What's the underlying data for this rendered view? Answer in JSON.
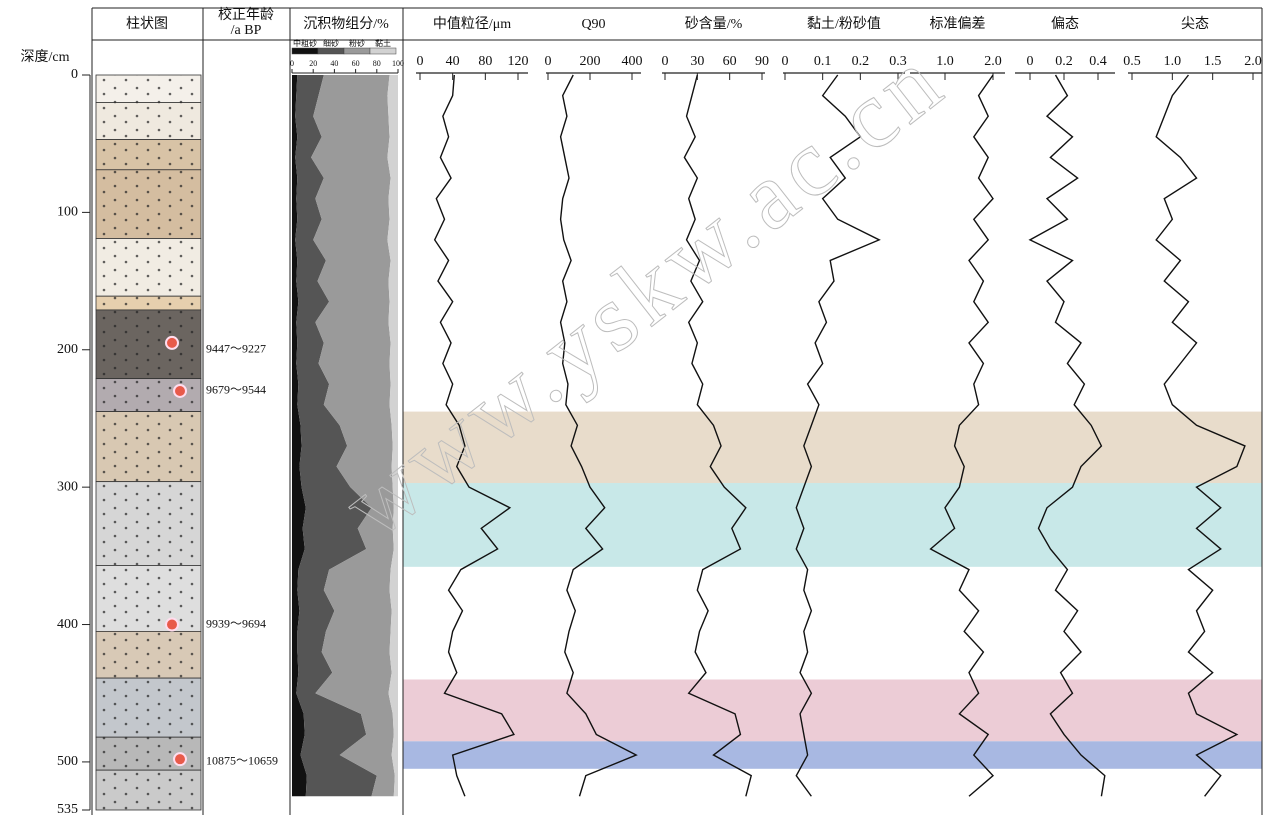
{
  "chart_data": {
    "type": "profile",
    "depth_label": "深度/cm",
    "ylim": [
      0,
      535
    ],
    "yticks": [
      0,
      100,
      200,
      300,
      400,
      500,
      535
    ],
    "depth": [
      0,
      15,
      30,
      45,
      60,
      75,
      90,
      105,
      120,
      135,
      150,
      165,
      180,
      195,
      210,
      225,
      240,
      255,
      270,
      285,
      300,
      315,
      330,
      345,
      360,
      375,
      390,
      405,
      420,
      435,
      450,
      465,
      480,
      495,
      510,
      525
    ],
    "lithology": {
      "title": "柱状图",
      "layers": [
        {
          "top": 0,
          "bottom": 20,
          "color": "#f4f0ea"
        },
        {
          "top": 20,
          "bottom": 47,
          "color": "#efe9df"
        },
        {
          "top": 47,
          "bottom": 69,
          "color": "#d8c3a6"
        },
        {
          "top": 69,
          "bottom": 119,
          "color": "#d4bda0"
        },
        {
          "top": 119,
          "bottom": 161,
          "color": "#f1ece3"
        },
        {
          "top": 161,
          "bottom": 171,
          "color": "#e6cfae"
        },
        {
          "top": 171,
          "bottom": 221,
          "color": "#6b6560"
        },
        {
          "top": 221,
          "bottom": 245,
          "color": "#b2abaf"
        },
        {
          "top": 245,
          "bottom": 296,
          "color": "#d8c8b2"
        },
        {
          "top": 296,
          "bottom": 357,
          "color": "#d6d6d6"
        },
        {
          "top": 357,
          "bottom": 405,
          "color": "#dedede"
        },
        {
          "top": 405,
          "bottom": 439,
          "color": "#d8c9b6"
        },
        {
          "top": 439,
          "bottom": 482,
          "color": "#c3c7cc"
        },
        {
          "top": 482,
          "bottom": 506,
          "color": "#b8b8b8"
        },
        {
          "top": 506,
          "bottom": 535,
          "color": "#cacaca"
        }
      ],
      "samples": [
        195,
        230,
        400,
        498
      ],
      "sample_color": "#e85a4a"
    },
    "ages": {
      "title": [
        "校正年龄",
        "/a BP"
      ],
      "labels": [
        {
          "depth": 200,
          "label": "9447～9227"
        },
        {
          "depth": 230,
          "label": "9679～9544"
        },
        {
          "depth": 400,
          "label": "9939～9694"
        },
        {
          "depth": 500,
          "label": "10875～10659"
        }
      ]
    },
    "components": {
      "title": "沉积物组分/%",
      "xlim": [
        0,
        100
      ],
      "xticks": [
        0,
        20,
        40,
        60,
        80,
        100
      ],
      "series": [
        {
          "name": "中粗砂",
          "color": "#111111",
          "values": [
            5,
            4,
            3,
            5,
            3,
            5,
            4,
            5,
            3,
            5,
            4,
            6,
            4,
            5,
            4,
            6,
            5,
            8,
            9,
            7,
            9,
            13,
            10,
            12,
            6,
            5,
            7,
            5,
            5,
            6,
            4,
            11,
            12,
            8,
            14,
            13
          ]
        },
        {
          "name": "细砂",
          "color": "#555555",
          "values": [
            25,
            21,
            17,
            23,
            15,
            25,
            18,
            23,
            17,
            27,
            20,
            29,
            18,
            25,
            21,
            29,
            25,
            37,
            43,
            35,
            46,
            62,
            52,
            58,
            29,
            25,
            33,
            27,
            23,
            32,
            18,
            54,
            58,
            37,
            66,
            62
          ]
        },
        {
          "name": "粉砂",
          "color": "#9a9a9a",
          "values": [
            62,
            65,
            71,
            64,
            72,
            63,
            69,
            64,
            70,
            61,
            67,
            57,
            69,
            63,
            67,
            58,
            62,
            49,
            43,
            52,
            40,
            21,
            33,
            26,
            58,
            62,
            54,
            61,
            64,
            56,
            69,
            30,
            26,
            49,
            17,
            21
          ]
        },
        {
          "name": "黏土",
          "color": "#d2d2d2",
          "values": [
            8,
            10,
            9,
            8,
            10,
            7,
            9,
            8,
            10,
            7,
            9,
            8,
            9,
            7,
            8,
            7,
            8,
            6,
            5,
            6,
            5,
            4,
            5,
            4,
            7,
            8,
            6,
            7,
            8,
            6,
            9,
            5,
            4,
            6,
            3,
            4
          ]
        }
      ]
    },
    "zones": [
      {
        "from": 245,
        "to": 297,
        "color": "#e8dccb"
      },
      {
        "from": 297,
        "to": 358,
        "color": "#c8e8e8"
      },
      {
        "from": 440,
        "to": 485,
        "color": "#ecccd6"
      },
      {
        "from": 485,
        "to": 505,
        "color": "#a8b8e2"
      }
    ],
    "panels": [
      {
        "title": "中值粒径/μm",
        "xlim": [
          0,
          120
        ],
        "xticks": [
          0,
          40,
          80,
          120
        ],
        "color": "#111111",
        "values": [
          42,
          40,
          28,
          35,
          25,
          38,
          20,
          30,
          18,
          35,
          22,
          40,
          25,
          38,
          28,
          40,
          32,
          48,
          55,
          45,
          60,
          110,
          75,
          95,
          50,
          35,
          52,
          40,
          35,
          45,
          30,
          100,
          115,
          40,
          45,
          55
        ]
      },
      {
        "title": "Q90",
        "xlim": [
          0,
          400
        ],
        "xticks": [
          0,
          200,
          400
        ],
        "color": "#111111",
        "values": [
          120,
          70,
          90,
          60,
          80,
          100,
          70,
          60,
          75,
          110,
          70,
          90,
          60,
          80,
          70,
          95,
          85,
          140,
          110,
          160,
          200,
          270,
          180,
          260,
          120,
          90,
          130,
          100,
          80,
          120,
          90,
          180,
          230,
          420,
          180,
          150
        ]
      },
      {
        "title": "砂含量/%",
        "xlim": [
          0,
          90
        ],
        "xticks": [
          0,
          30,
          60,
          90
        ],
        "color": "#111111",
        "values": [
          30,
          25,
          20,
          28,
          18,
          30,
          22,
          28,
          20,
          32,
          24,
          35,
          22,
          30,
          25,
          35,
          30,
          45,
          52,
          42,
          55,
          75,
          62,
          70,
          35,
          30,
          40,
          32,
          28,
          38,
          22,
          65,
          70,
          45,
          80,
          75
        ]
      },
      {
        "title": "黏土/粉砂值",
        "xlim": [
          0,
          0.3
        ],
        "xticks": [
          0,
          0.1,
          0.2,
          0.3
        ],
        "color": "#111111",
        "values": [
          0.14,
          0.1,
          0.16,
          0.2,
          0.12,
          0.16,
          0.1,
          0.14,
          0.25,
          0.12,
          0.13,
          0.09,
          0.11,
          0.08,
          0.1,
          0.06,
          0.09,
          0.07,
          0.05,
          0.07,
          0.05,
          0.03,
          0.05,
          0.03,
          0.06,
          0.05,
          0.07,
          0.05,
          0.06,
          0.04,
          0.07,
          0.04,
          0.05,
          0.06,
          0.03,
          0.07
        ]
      },
      {
        "title": "标准偏差",
        "xlim": [
          1,
          2
        ],
        "xticks": [
          {
            "value": 1,
            "label": "1.0"
          },
          {
            "value": 2,
            "label": "2.0"
          }
        ],
        "color": "#111111",
        "values": [
          2,
          1.7,
          1.9,
          1.6,
          1.9,
          1.7,
          2,
          1.6,
          1.9,
          1.5,
          1.8,
          1.6,
          1.9,
          1.5,
          1.8,
          1.6,
          1.7,
          1.3,
          1.2,
          1.4,
          1.3,
          1,
          1.2,
          0.7,
          1.5,
          1.3,
          1.7,
          1.4,
          1.8,
          1.5,
          1.7,
          1.3,
          1.9,
          1.6,
          2,
          1.5
        ]
      },
      {
        "title": "偏态",
        "xlim": [
          0,
          0.4
        ],
        "xticks": [
          0,
          0.2,
          0.4
        ],
        "color": "#111111",
        "values": [
          0.15,
          0.22,
          0.1,
          0.25,
          0.12,
          0.28,
          0.1,
          0.22,
          0,
          0.25,
          0.1,
          0.2,
          0.15,
          0.3,
          0.22,
          0.32,
          0.26,
          0.36,
          0.42,
          0.3,
          0.25,
          0.1,
          0.05,
          0.12,
          0.22,
          0.15,
          0.28,
          0.2,
          0.3,
          0.18,
          0.25,
          0.12,
          0.2,
          0.3,
          0.44,
          0.42
        ]
      },
      {
        "title": "尖态",
        "xlim": [
          0.5,
          2
        ],
        "xticks": [
          0.5,
          {
            "value": 1,
            "label": "1.0"
          },
          1.5,
          {
            "value": 2,
            "label": "2.0"
          }
        ],
        "color": "#111111",
        "values": [
          1.2,
          1,
          0.9,
          0.8,
          1.1,
          1.3,
          0.9,
          1,
          0.8,
          1.1,
          0.9,
          1.2,
          1,
          1.3,
          1.1,
          0.9,
          1,
          1.3,
          1.9,
          1.8,
          1.3,
          1.6,
          1.3,
          1.6,
          1.2,
          1.5,
          1.3,
          1.4,
          1.2,
          1.5,
          1.2,
          1.3,
          1.8,
          1.3,
          1.6,
          1.4
        ]
      }
    ],
    "watermark": "www.yskw.ac.cn"
  }
}
